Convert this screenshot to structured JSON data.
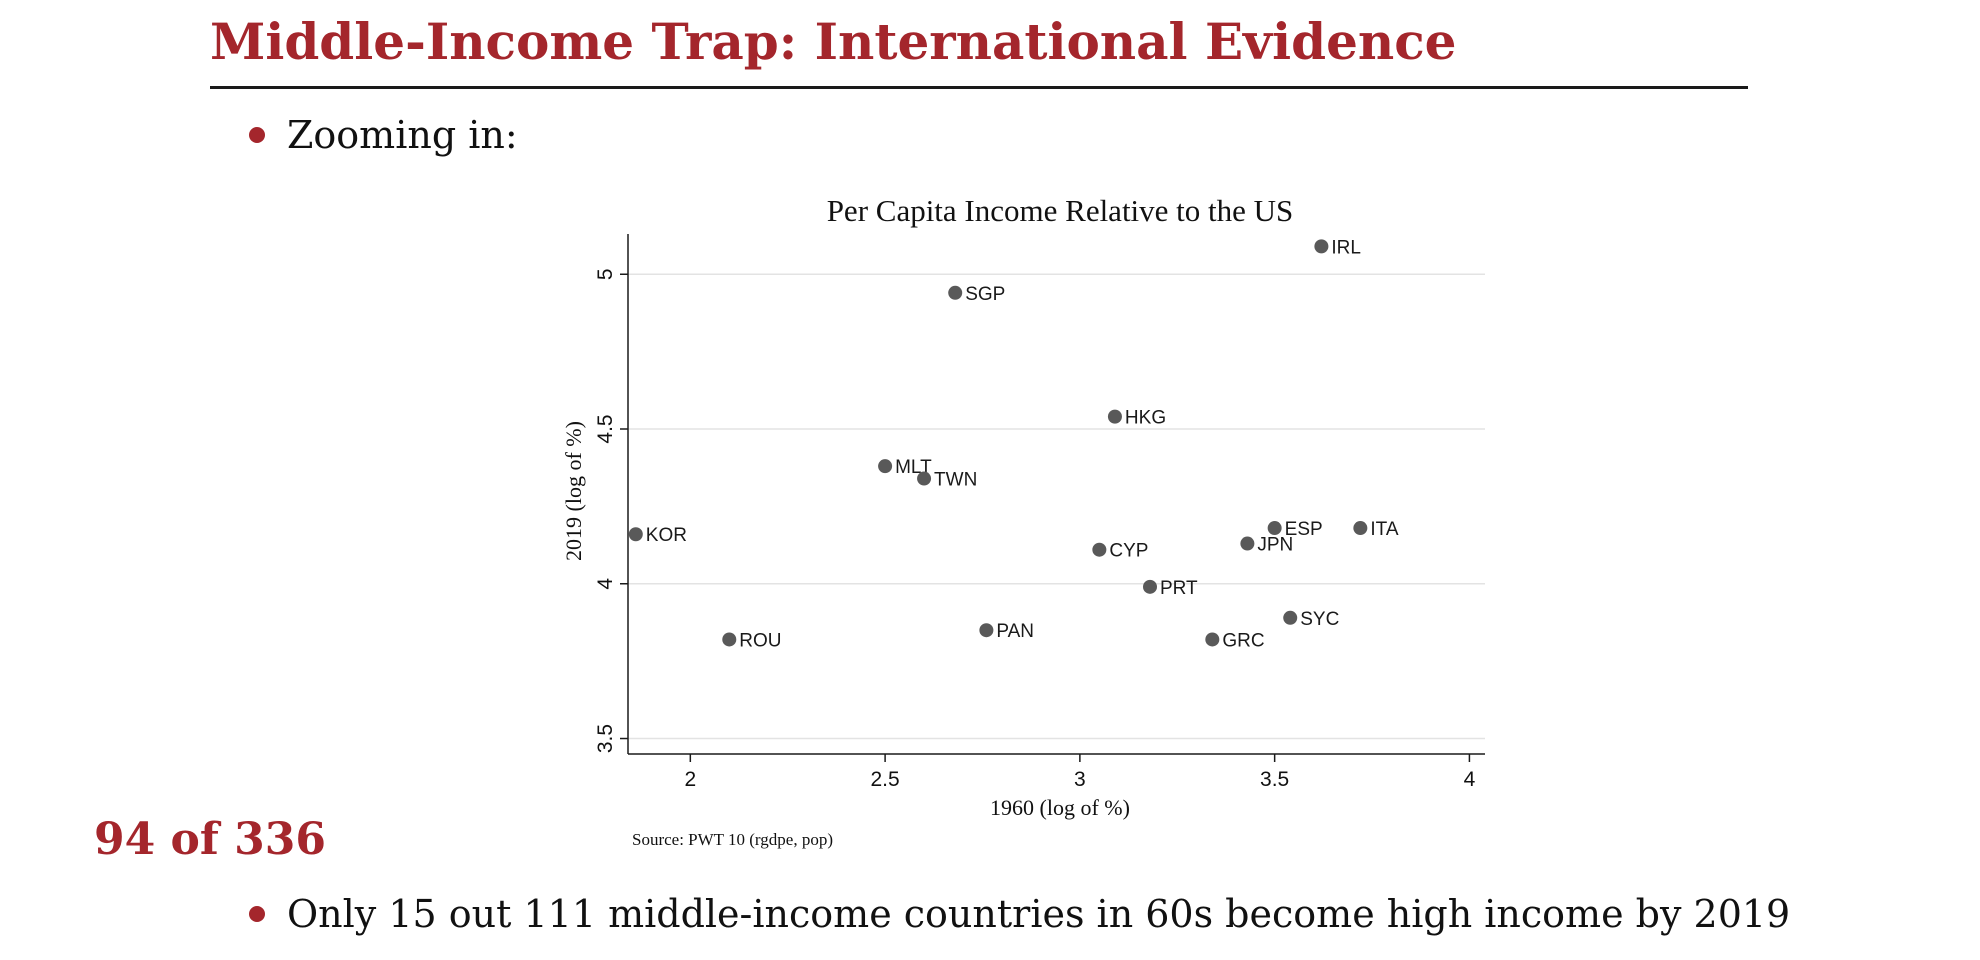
{
  "slide": {
    "title": "Middle-Income Trap: International Evidence",
    "bullet_1": "Zooming in:",
    "bullet_2": "Only 15 out 111 middle-income countries in 60s become high income by 2019",
    "page_counter": "94 of 336",
    "accent_color": "#a4262c"
  },
  "chart_data": {
    "type": "scatter",
    "title": "Per Capita Income Relative to the US",
    "xlabel": "1960 (log of %)",
    "ylabel": "2019 (log of %)",
    "source": "Source: PWT 10 (rgdpe, pop)",
    "xlim": [
      1.84,
      4.04
    ],
    "ylim": [
      3.45,
      5.13
    ],
    "xticks": [
      2,
      2.5,
      3,
      3.5,
      4
    ],
    "xtick_labels": [
      "2",
      "2.5",
      "3",
      "3.5",
      "4"
    ],
    "yticks": [
      3.5,
      4,
      4.5,
      5
    ],
    "ytick_labels": [
      "3.5",
      "4",
      "4.5",
      "5"
    ],
    "grid": "horizontal",
    "marker_color": "#595959",
    "points": [
      {
        "label": "IRL",
        "x": 3.62,
        "y": 5.09
      },
      {
        "label": "SGP",
        "x": 2.68,
        "y": 4.94
      },
      {
        "label": "HKG",
        "x": 3.09,
        "y": 4.54
      },
      {
        "label": "MLT",
        "x": 2.5,
        "y": 4.38
      },
      {
        "label": "TWN",
        "x": 2.6,
        "y": 4.34
      },
      {
        "label": "KOR",
        "x": 1.86,
        "y": 4.16
      },
      {
        "label": "ESP",
        "x": 3.5,
        "y": 4.18
      },
      {
        "label": "ITA",
        "x": 3.72,
        "y": 4.18
      },
      {
        "label": "JPN",
        "x": 3.43,
        "y": 4.13
      },
      {
        "label": "CYP",
        "x": 3.05,
        "y": 4.11
      },
      {
        "label": "PRT",
        "x": 3.18,
        "y": 3.99
      },
      {
        "label": "SYC",
        "x": 3.54,
        "y": 3.89
      },
      {
        "label": "PAN",
        "x": 2.76,
        "y": 3.85
      },
      {
        "label": "ROU",
        "x": 2.1,
        "y": 3.82
      },
      {
        "label": "GRC",
        "x": 3.34,
        "y": 3.82
      }
    ]
  }
}
